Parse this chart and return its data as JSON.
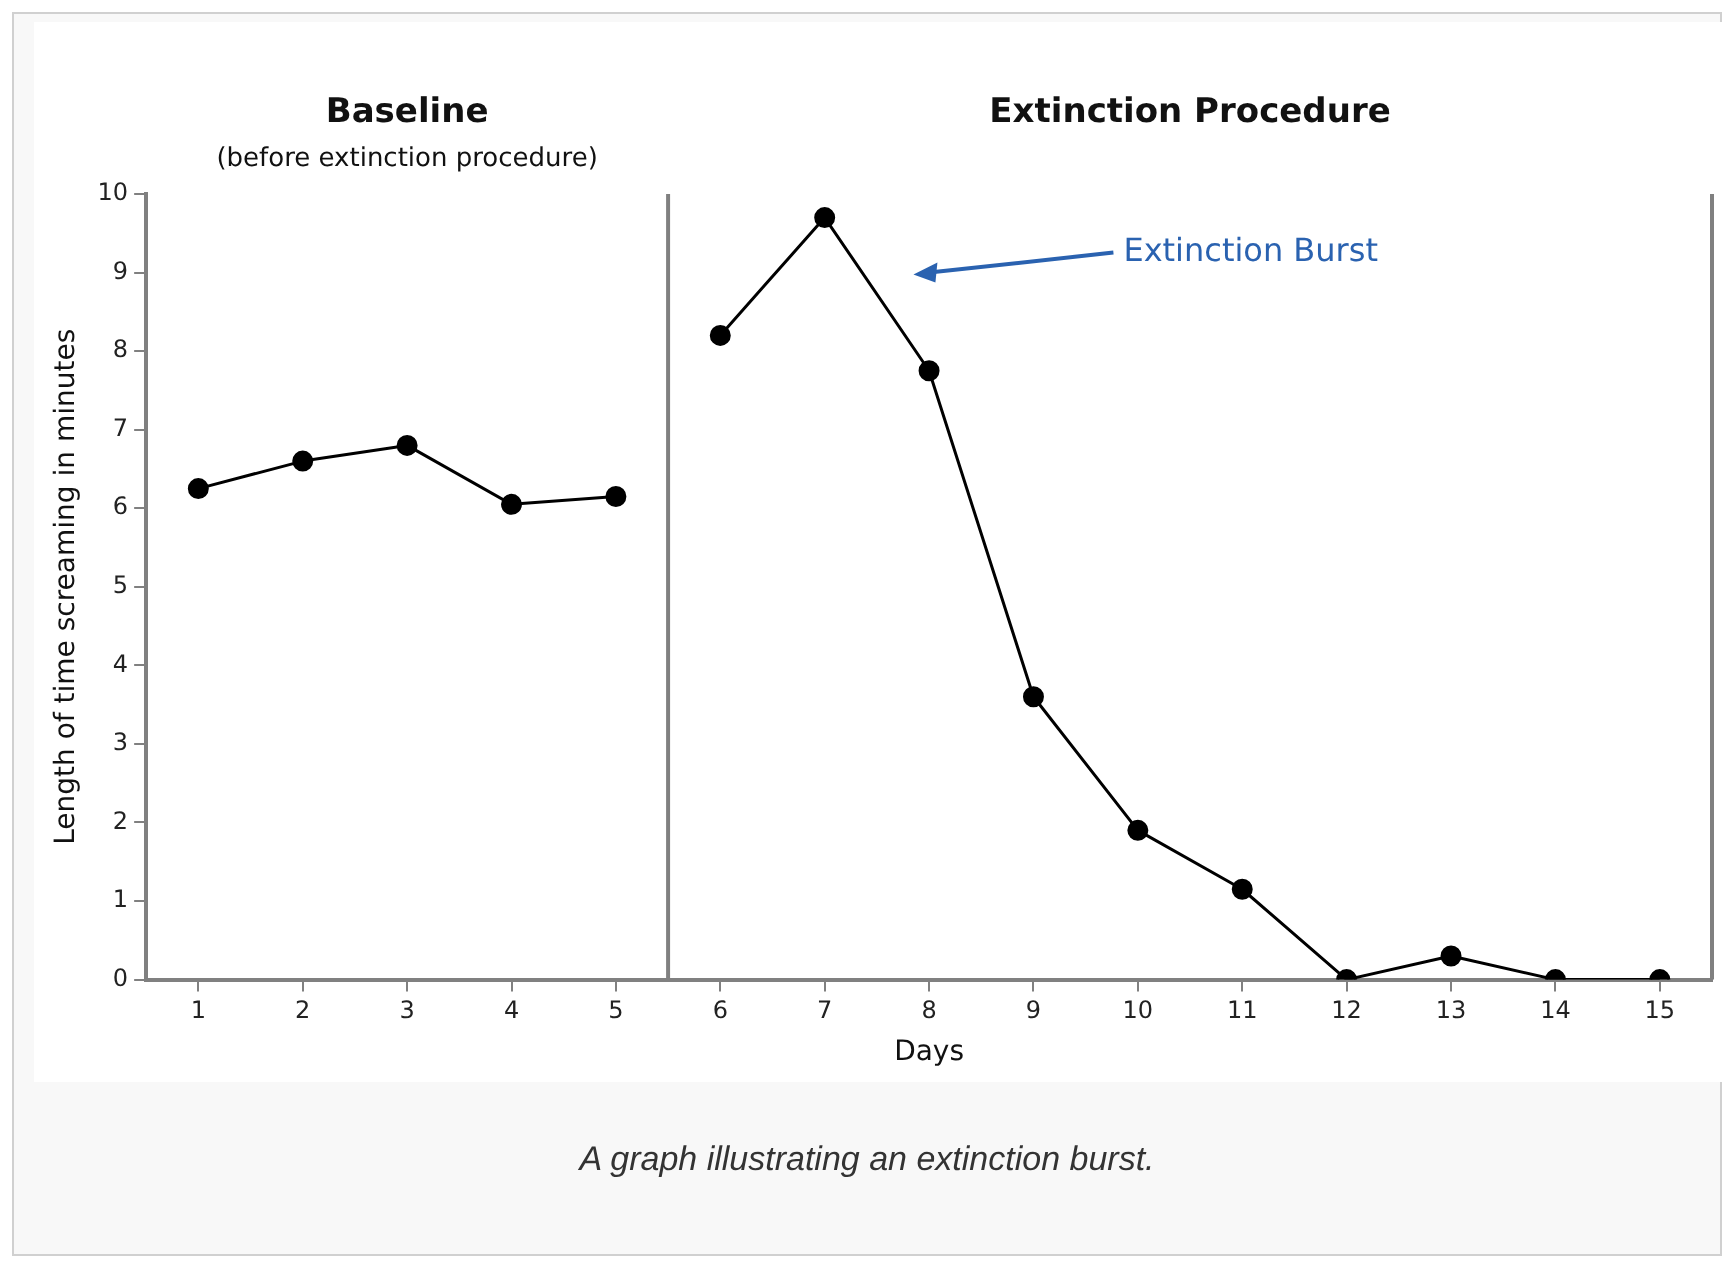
{
  "chart_data": {
    "type": "line",
    "xlabel": "Days",
    "ylabel": "Length of time screaming in minutes",
    "xlim": [
      0.5,
      15.5
    ],
    "xticks": [
      1,
      2,
      3,
      4,
      5,
      6,
      7,
      8,
      9,
      10,
      11,
      12,
      13,
      14,
      15
    ],
    "ylim": [
      0,
      10
    ],
    "yticks": [
      0,
      1,
      2,
      3,
      4,
      5,
      6,
      7,
      8,
      9,
      10
    ],
    "series": [
      {
        "color": "#000000",
        "x": [
          1,
          2,
          3,
          4,
          5
        ],
        "values": [
          6.25,
          6.6,
          6.8,
          6.05,
          6.15
        ]
      },
      {
        "color": "#000000",
        "x": [
          6,
          7,
          8,
          9,
          10,
          11,
          12,
          13,
          14,
          15
        ],
        "values": [
          8.2,
          9.7,
          7.75,
          3.6,
          1.9,
          1.15,
          0,
          0.3,
          0,
          0
        ]
      }
    ],
    "ref_lines": [
      {
        "axis": "x",
        "value": 5.5,
        "color": "#808080"
      }
    ],
    "annotations": [
      "Baseline",
      "(before extinction procedure)",
      "Extinction Procedure",
      "Extinction Burst",
      "A graph illustrating an extinction burst."
    ],
    "marker": "circle",
    "line_style": "solid",
    "grid": false,
    "legend": false
  }
}
